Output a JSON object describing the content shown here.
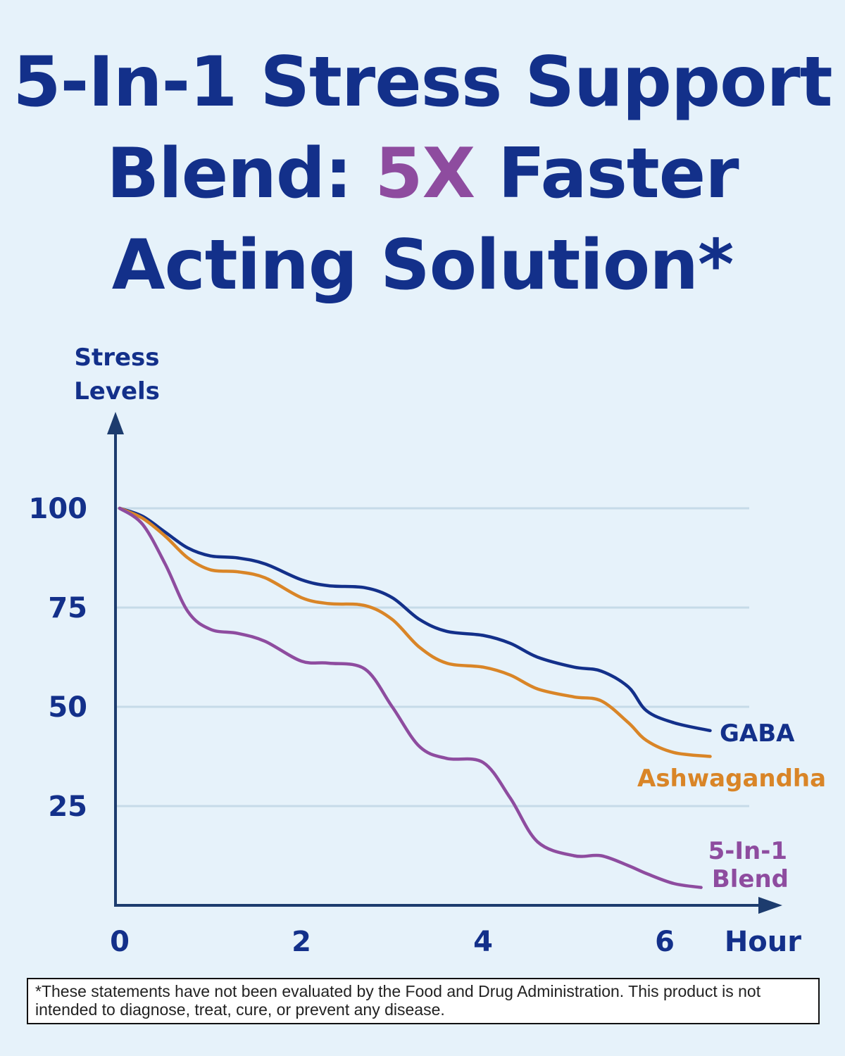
{
  "headline": {
    "line1": "5-In-1 Stress Support",
    "line2_prefix": "Blend: ",
    "line2_accent": "5X",
    "line2_suffix": " Faster",
    "line3": "Acting Solution*"
  },
  "colors": {
    "navy": "#13308a",
    "purple": "#8e4c9f",
    "orange": "#d98527",
    "background": "#e6f2fa"
  },
  "chart_data": {
    "type": "line",
    "ylabel_line1": "Stress",
    "ylabel_line2": "Levels",
    "xlabel": "Hour",
    "xlim": [
      0,
      7
    ],
    "ylim": [
      0,
      115
    ],
    "yticks": [
      "100",
      "75",
      "50",
      "25"
    ],
    "xticks": [
      "0",
      "2",
      "4",
      "6"
    ],
    "grid": true,
    "series": [
      {
        "name": "GABA",
        "color": "#13308a",
        "x": [
          0,
          0.25,
          0.5,
          0.75,
          1.0,
          1.3,
          1.6,
          2.0,
          2.3,
          2.7,
          3.0,
          3.3,
          3.6,
          4.0,
          4.3,
          4.6,
          5.0,
          5.3,
          5.6,
          5.8,
          6.1,
          6.5
        ],
        "y": [
          100,
          98,
          94,
          90,
          88,
          87.5,
          86,
          82,
          80.5,
          80,
          77.5,
          72,
          69,
          68,
          66,
          62.5,
          60,
          59,
          55,
          49,
          46,
          44
        ]
      },
      {
        "name": "Ashwagandha",
        "color": "#d98527",
        "x": [
          0,
          0.25,
          0.5,
          0.75,
          1.0,
          1.3,
          1.6,
          2.0,
          2.3,
          2.7,
          3.0,
          3.3,
          3.6,
          4.0,
          4.3,
          4.6,
          5.0,
          5.3,
          5.6,
          5.8,
          6.1,
          6.5
        ],
        "y": [
          100,
          97.5,
          93,
          87.5,
          84.5,
          84,
          82.5,
          77.5,
          76,
          75.5,
          72,
          65,
          61,
          60,
          58,
          54.5,
          52.5,
          51.5,
          46,
          41.5,
          38.5,
          37.5
        ]
      },
      {
        "name": "5-In-1 Blend",
        "label_line1": "5-In-1",
        "label_line2": "Blend",
        "color": "#8e4c9f",
        "x": [
          0,
          0.25,
          0.5,
          0.75,
          1.0,
          1.3,
          1.6,
          2.0,
          2.3,
          2.7,
          3.0,
          3.3,
          3.6,
          4.0,
          4.3,
          4.6,
          5.0,
          5.3,
          5.6,
          5.8,
          6.1,
          6.4
        ],
        "y": [
          100,
          96,
          86,
          74,
          69.5,
          68.5,
          66.5,
          61.5,
          61,
          59.5,
          50,
          40,
          37,
          36,
          27,
          16,
          12.5,
          12.5,
          10,
          8,
          5.5,
          4.5
        ]
      }
    ]
  },
  "disclaimer": {
    "text": "*These statements have not been evaluated by the Food and Drug Administration. This product is not intended to diagnose, treat, cure, or prevent any disease."
  }
}
